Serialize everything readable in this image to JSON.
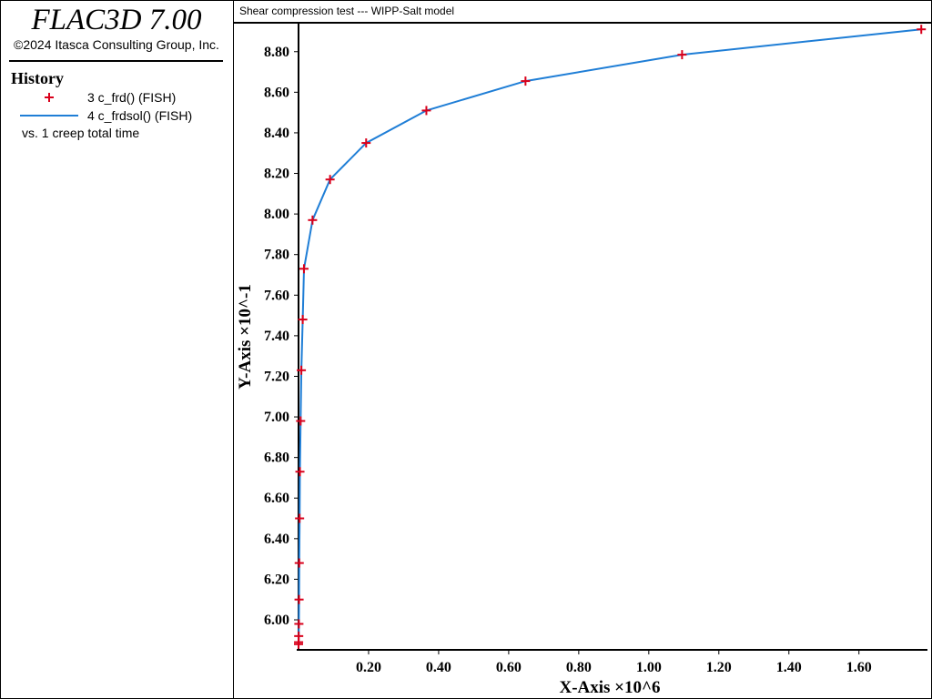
{
  "app": {
    "title": "FLAC3D 7.00",
    "copyright": "©2024 Itasca Consulting Group, Inc."
  },
  "legend": {
    "heading": "History",
    "entries": [
      {
        "label": "3 c_frd() (FISH)",
        "marker": "plus",
        "color": "#d9001b"
      },
      {
        "label": "4 c_frdsol() (FISH)",
        "marker": "line",
        "color": "#1f7ed6"
      }
    ],
    "vs_label": "vs. 1 creep total time"
  },
  "chart_data": {
    "type": "line",
    "title": "Shear compression test --- WIPP-Salt model",
    "xlabel": "X-Axis ×10^6",
    "ylabel": "Y-Axis ×10^-1",
    "xlim": [
      0,
      1.78
    ],
    "ylim": [
      5.87,
      8.92
    ],
    "x_ticks": [
      0.2,
      0.4,
      0.6,
      0.8,
      1.0,
      1.2,
      1.4,
      1.6
    ],
    "x_tick_labels": [
      "0.20",
      "0.40",
      "0.60",
      "0.80",
      "1.00",
      "1.20",
      "1.40",
      "1.60"
    ],
    "y_ticks": [
      6.0,
      6.2,
      6.4,
      6.6,
      6.8,
      7.0,
      7.2,
      7.4,
      7.6,
      7.8,
      8.0,
      8.2,
      8.4,
      8.6,
      8.8
    ],
    "y_tick_labels": [
      "6.00",
      "6.20",
      "6.40",
      "6.60",
      "6.80",
      "7.00",
      "7.20",
      "7.40",
      "7.60",
      "7.80",
      "8.00",
      "8.20",
      "8.40",
      "8.60",
      "8.80"
    ],
    "grid": false,
    "series": [
      {
        "name": "3 c_frd() (FISH)",
        "style": "markers",
        "marker": "plus",
        "color": "#d9001b",
        "x": [
          0,
          0.0002,
          0.0005,
          0.001,
          0.0015,
          0.002,
          0.003,
          0.004,
          0.006,
          0.008,
          0.012,
          0.0155,
          0.04,
          0.09,
          0.193,
          0.365,
          0.648,
          1.095,
          1.778
        ],
        "y": [
          5.88,
          5.89,
          5.92,
          5.98,
          6.1,
          6.28,
          6.5,
          6.73,
          6.98,
          7.23,
          7.48,
          7.73,
          7.97,
          8.17,
          8.35,
          8.51,
          8.655,
          8.785,
          8.91
        ]
      },
      {
        "name": "4 c_frdsol() (FISH)",
        "style": "line",
        "color": "#1f7ed6",
        "x": [
          0,
          0.0002,
          0.0005,
          0.001,
          0.0015,
          0.002,
          0.003,
          0.004,
          0.006,
          0.008,
          0.012,
          0.0155,
          0.04,
          0.09,
          0.193,
          0.365,
          0.648,
          1.095,
          1.778
        ],
        "y": [
          5.88,
          5.89,
          5.92,
          5.98,
          6.1,
          6.28,
          6.5,
          6.73,
          6.98,
          7.23,
          7.48,
          7.73,
          7.97,
          8.17,
          8.35,
          8.51,
          8.655,
          8.785,
          8.91
        ]
      }
    ]
  }
}
